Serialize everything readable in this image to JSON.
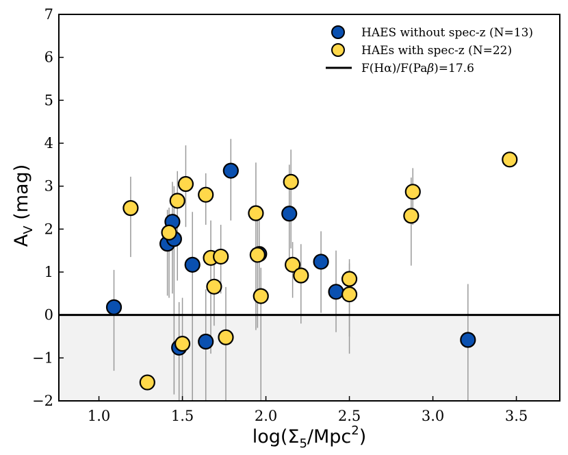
{
  "chart_data": {
    "type": "scatter",
    "xlabel": "log(Σ5/Mpc2)",
    "xlabel_base": "log(Σ",
    "xlabel_sub": "5",
    "xlabel_mid": "/Mpc",
    "xlabel_sup": "2",
    "xlabel_end": ")",
    "ylabel": "AV (mag)",
    "ylabel_base": "A",
    "ylabel_sub": "V",
    "ylabel_end": " (mag)",
    "xlim": [
      0.76,
      3.76
    ],
    "ylim": [
      -2,
      7
    ],
    "x_ticks": [
      1.0,
      1.5,
      2.0,
      2.5,
      3.0,
      3.5
    ],
    "x_tick_labels": [
      "1.0",
      "1.5",
      "2.0",
      "2.5",
      "3.0",
      "3.5"
    ],
    "y_ticks": [
      -2,
      -1,
      0,
      1,
      2,
      3,
      4,
      5,
      6,
      7
    ],
    "y_tick_labels": [
      "−2",
      "−1",
      "0",
      "1",
      "2",
      "3",
      "4",
      "5",
      "6",
      "7"
    ],
    "shaded_region": {
      "y_from": -2,
      "y_to": 0,
      "color": "#f2f2f2"
    },
    "reference_line": {
      "y": 0,
      "label": "F(Hα)/F(Paβ)=17.6",
      "label_pre": "F(Hα)/F(Pa",
      "label_italic": "β",
      "label_post": ")=17.6",
      "color": "#000000"
    },
    "legend_position": "top-right",
    "series": [
      {
        "name": "HAES without spec-z (N=13)",
        "color": "#0a50b0",
        "points": [
          {
            "x": 1.09,
            "y": 0.18,
            "err_lo": -1.3,
            "err_hi": 1.05
          },
          {
            "x": 1.41,
            "y": 1.66,
            "err_lo": 0.45,
            "err_hi": 2.45
          },
          {
            "x": 1.44,
            "y": 2.17,
            "err_lo": 0.5,
            "err_hi": 3.1
          },
          {
            "x": 1.45,
            "y": 1.77,
            "err_lo": -1.85,
            "err_hi": 3.0
          },
          {
            "x": 1.48,
            "y": -0.76,
            "err_lo": -2.0,
            "err_hi": 0.3
          },
          {
            "x": 1.56,
            "y": 1.17,
            "err_lo": -2.0,
            "err_hi": 2.4
          },
          {
            "x": 1.64,
            "y": -0.62,
            "err_lo": -2.0,
            "err_hi": 0.6
          },
          {
            "x": 1.79,
            "y": 3.36,
            "err_lo": 2.2,
            "err_hi": 4.1
          },
          {
            "x": 1.96,
            "y": 1.42,
            "err_lo": 0.5,
            "err_hi": 2.2
          },
          {
            "x": 2.14,
            "y": 2.36,
            "err_lo": 1.2,
            "err_hi": 3.5
          },
          {
            "x": 2.33,
            "y": 1.24,
            "err_lo": 0.05,
            "err_hi": 1.95
          },
          {
            "x": 2.42,
            "y": 0.54,
            "err_lo": -0.4,
            "err_hi": 1.5
          },
          {
            "x": 3.21,
            "y": -0.58,
            "err_lo": -2.0,
            "err_hi": 0.72
          }
        ]
      },
      {
        "name": "HAEs with spec-z (N=22)",
        "color": "#ffd84a",
        "points": [
          {
            "x": 1.19,
            "y": 2.49,
            "err_lo": 1.35,
            "err_hi": 3.22
          },
          {
            "x": 1.29,
            "y": -1.57,
            "err_lo": -1.57,
            "err_hi": -1.57
          },
          {
            "x": 1.42,
            "y": 1.92,
            "err_lo": 0.4,
            "err_hi": 2.5
          },
          {
            "x": 1.47,
            "y": 2.66,
            "err_lo": 0.8,
            "err_hi": 3.35
          },
          {
            "x": 1.5,
            "y": -0.67,
            "err_lo": -2.0,
            "err_hi": 0.4
          },
          {
            "x": 1.52,
            "y": 3.05,
            "err_lo": 2.05,
            "err_hi": 3.95
          },
          {
            "x": 1.64,
            "y": 2.8,
            "err_lo": 2.1,
            "err_hi": 3.3
          },
          {
            "x": 1.67,
            "y": 1.33,
            "err_lo": -0.9,
            "err_hi": 2.2
          },
          {
            "x": 1.69,
            "y": 0.66,
            "err_lo": -0.25,
            "err_hi": 1.5
          },
          {
            "x": 1.73,
            "y": 1.36,
            "err_lo": 0.5,
            "err_hi": 2.1
          },
          {
            "x": 1.76,
            "y": -0.52,
            "err_lo": -2.0,
            "err_hi": 0.65
          },
          {
            "x": 1.94,
            "y": 2.37,
            "err_lo": -0.35,
            "err_hi": 3.55
          },
          {
            "x": 1.95,
            "y": 1.4,
            "err_lo": -0.3,
            "err_hi": 2.2
          },
          {
            "x": 1.97,
            "y": 0.44,
            "err_lo": -2.0,
            "err_hi": 1.1
          },
          {
            "x": 2.15,
            "y": 3.1,
            "err_lo": 1.55,
            "err_hi": 3.85
          },
          {
            "x": 2.16,
            "y": 1.17,
            "err_lo": 0.4,
            "err_hi": 1.7
          },
          {
            "x": 2.21,
            "y": 0.92,
            "err_lo": -0.2,
            "err_hi": 1.65
          },
          {
            "x": 2.5,
            "y": 0.84,
            "err_lo": -0.9,
            "err_hi": 1.3
          },
          {
            "x": 2.5,
            "y": 0.48,
            "err_lo": -0.5,
            "err_hi": 1.2
          },
          {
            "x": 2.87,
            "y": 2.31,
            "err_lo": 1.15,
            "err_hi": 3.2
          },
          {
            "x": 2.88,
            "y": 2.87,
            "err_lo": 2.1,
            "err_hi": 3.42
          },
          {
            "x": 3.46,
            "y": 3.62,
            "err_lo": 3.62,
            "err_hi": 3.62
          }
        ]
      }
    ]
  }
}
